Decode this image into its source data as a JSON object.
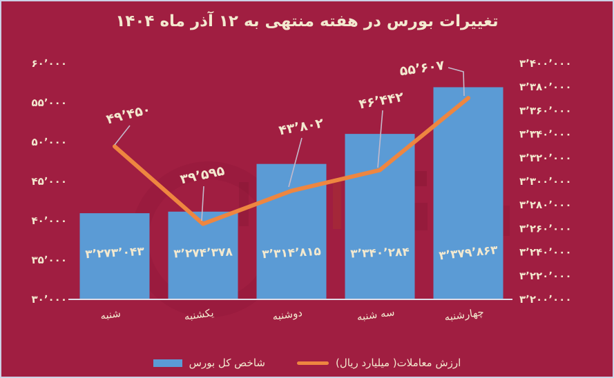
{
  "title": "تغییرات بورس در هفته منتهی به ۱۲ آذر ماه ۱۴۰۴",
  "colors": {
    "background": "#a01e41",
    "border": "#ccd2e6",
    "bar": "#5b9bd5",
    "line": "#ee8640",
    "cream_text": "#f3e9cf",
    "leader": "#c4bacc",
    "axis_line": "#e2dee8"
  },
  "legend": {
    "bar": {
      "label": "شاخص کل بورس"
    },
    "line": {
      "label": "ارزش معاملات( میلیارد ریال)"
    }
  },
  "chart_data": {
    "type": "bar+line",
    "title": "تغییرات بورس در هفته منتهی به ۱۲ آذر ماه ۱۴۰۴",
    "categories": [
      "شنبه",
      "یکشنبه",
      "دوشنبه",
      "سه شنبه",
      "چهارشنبه"
    ],
    "series": [
      {
        "name": "شاخص کل بورس",
        "type": "bar",
        "axis": "right",
        "values": [
          3273043,
          3274378,
          3314815,
          3340284,
          3379863
        ],
        "labels": [
          "۳٬۲۷۳٬۰۴۳",
          "۳٬۲۷۴٬۳۷۸",
          "۳٬۳۱۴٬۸۱۵",
          "۳٬۳۴۰٬۲۸۴",
          "۳٬۳۷۹٬۸۶۳"
        ]
      },
      {
        "name": "ارزش معاملات( میلیارد ریال)",
        "type": "line",
        "axis": "left",
        "values": [
          49450,
          39595,
          43802,
          46442,
          55607
        ],
        "labels": [
          "۴۹٬۴۵۰",
          "۳۹٬۵۹۵",
          "۴۳٬۸۰۲",
          "۴۶٬۴۴۲",
          "۵۵٬۶۰۷"
        ]
      }
    ],
    "left_axis": {
      "min": 30000,
      "max": 60000,
      "step": 5000,
      "tick_labels": [
        "۶۰٬۰۰۰",
        "۵۵٬۰۰۰",
        "۵۰٬۰۰۰",
        "۴۵٬۰۰۰",
        "۴۰٬۰۰۰",
        "۳۵٬۰۰۰",
        "۳۰٬۰۰۰"
      ]
    },
    "right_axis": {
      "min": 3200000,
      "max": 3400000,
      "step": 20000,
      "tick_labels": [
        "۳٬۴۰۰٬۰۰۰",
        "۳٬۳۸۰٬۰۰۰",
        "۳٬۳۶۰٬۰۰۰",
        "۳٬۳۴۰٬۰۰۰",
        "۳٬۳۲۰٬۰۰۰",
        "۳٬۳۰۰٬۰۰۰",
        "۳٬۲۸۰٬۰۰۰",
        "۳٬۲۶۰٬۰۰۰",
        "۳٬۲۴۰٬۰۰۰",
        "۳٬۲۲۰٬۰۰۰",
        "۳٬۲۰۰٬۰۰۰"
      ]
    },
    "grid": false,
    "legend_position": "bottom"
  }
}
